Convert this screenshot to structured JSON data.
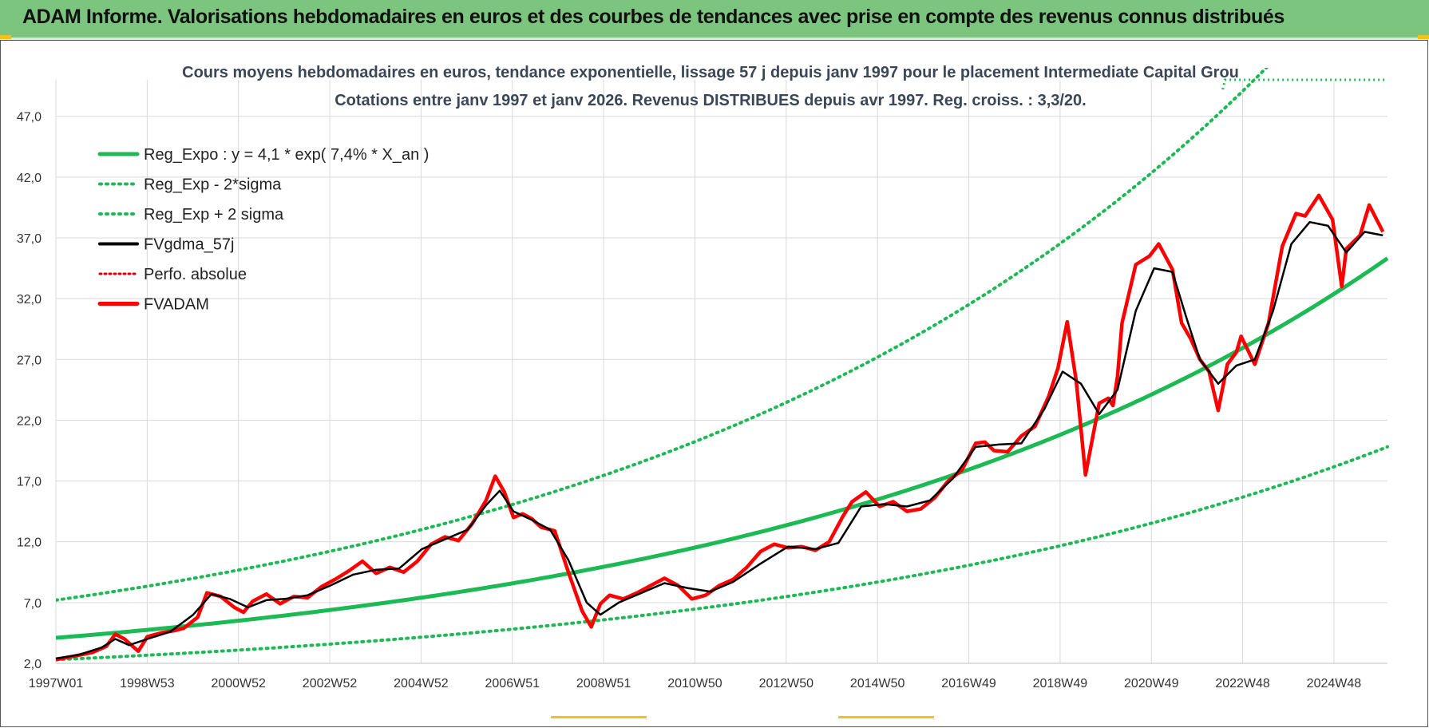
{
  "banner": {
    "title": "ADAM Informe. Valorisations hebdomadaires en euros et des courbes de tendances avec prise en compte des revenus connus distribués"
  },
  "colors": {
    "banner_bg": "#7bc57f",
    "trend": "#1db954",
    "smooth": "#000000",
    "price": "#ff0000",
    "perf": "#d40000"
  },
  "chart_data": {
    "type": "line",
    "title": "Cours moyens hebdomadaires en euros, tendance exponentielle, lissage 57 j depuis janv 1997  pour le placement Intermediate Capital Grou",
    "subtitle": "Cotations entre janv 1997 et janv 2026. Revenus DISTRIBUES depuis avr 1997. Reg. croiss. : 3,3/20.",
    "x_tick_labels": [
      "1997W01",
      "1998W53",
      "2000W52",
      "2002W52",
      "2004W52",
      "2006W51",
      "2008W51",
      "2010W50",
      "2012W50",
      "2014W50",
      "2016W49",
      "2018W49",
      "2020W49",
      "2022W48",
      "2024W48"
    ],
    "y_tick_labels": [
      "2,0",
      "7,0",
      "12,0",
      "17,0",
      "22,0",
      "27,0",
      "32,0",
      "37,0",
      "42,0",
      "47,0"
    ],
    "ylim": [
      2,
      50
    ],
    "xlim": [
      1997.0,
      2026.1
    ],
    "grid": true,
    "legend_position": "top-left",
    "legend": [
      "Reg_Expo : y = 4,1 * exp( 7,4% *  X_an )",
      "Reg_Exp - 2*sigma",
      "Reg_Exp + 2 sigma",
      "FVgdma_57j",
      "Perfo. absolue",
      "FVADAM"
    ],
    "trend_model": {
      "a": 4.1,
      "rate": 0.074,
      "lower_factor": 0.57,
      "upper_factor": 1.75,
      "lower_start": 2.3,
      "upper_start": 7.2
    },
    "perfo_absolue_level": 50.0,
    "series": [
      {
        "name": "FVADAM",
        "x": [
          1997.0,
          1997.4,
          1997.8,
          1998.1,
          1998.3,
          1998.5,
          1998.8,
          1999.0,
          1999.3,
          1999.6,
          1999.8,
          2000.1,
          2000.3,
          2000.6,
          2000.9,
          2001.1,
          2001.3,
          2001.6,
          2001.9,
          2002.2,
          2002.5,
          2002.8,
          2003.1,
          2003.4,
          2003.7,
          2004.0,
          2004.3,
          2004.6,
          2004.9,
          2005.2,
          2005.5,
          2005.8,
          2006.1,
          2006.4,
          2006.6,
          2006.8,
          2007.0,
          2007.2,
          2007.4,
          2007.6,
          2007.9,
          2008.2,
          2008.5,
          2008.7,
          2008.9,
          2009.1,
          2009.4,
          2009.7,
          2010.0,
          2010.3,
          2010.6,
          2010.9,
          2011.2,
          2011.5,
          2011.8,
          2012.1,
          2012.4,
          2012.7,
          2013.0,
          2013.3,
          2013.6,
          2013.9,
          2014.2,
          2014.4,
          2014.7,
          2015.0,
          2015.3,
          2015.6,
          2015.9,
          2016.2,
          2016.5,
          2016.8,
          2017.1,
          2017.3,
          2017.5,
          2017.8,
          2018.1,
          2018.4,
          2018.7,
          2018.9,
          2019.1,
          2019.3,
          2019.5,
          2019.8,
          2020.0,
          2020.1,
          2020.2,
          2020.3,
          2020.6,
          2020.9,
          2021.1,
          2021.4,
          2021.6,
          2021.8,
          2022.0,
          2022.2,
          2022.4,
          2022.6,
          2022.8,
          2022.9,
          2023.2,
          2023.5,
          2023.8,
          2024.1,
          2024.3,
          2024.6,
          2024.9,
          2025.1,
          2025.2,
          2025.5,
          2025.7,
          2026.0
        ],
        "values": [
          2.3,
          2.6,
          2.9,
          3.4,
          4.4,
          4.0,
          3.0,
          4.2,
          4.5,
          4.7,
          4.9,
          5.8,
          7.8,
          7.5,
          6.6,
          6.2,
          7.1,
          7.7,
          6.9,
          7.5,
          7.4,
          8.3,
          8.9,
          9.6,
          10.4,
          9.4,
          9.9,
          9.5,
          10.4,
          11.8,
          12.4,
          12.1,
          13.5,
          15.4,
          17.4,
          16.1,
          14.0,
          14.3,
          13.9,
          13.2,
          12.9,
          9.5,
          6.3,
          5.0,
          6.9,
          7.6,
          7.3,
          7.8,
          8.4,
          9.0,
          8.4,
          7.3,
          7.6,
          8.4,
          8.9,
          9.9,
          11.2,
          11.8,
          11.5,
          11.6,
          11.3,
          12.0,
          14.1,
          15.3,
          16.1,
          14.9,
          15.3,
          14.5,
          14.7,
          15.6,
          17.0,
          17.9,
          20.1,
          20.2,
          19.5,
          19.4,
          20.7,
          21.5,
          24.0,
          26.3,
          30.1,
          25.2,
          17.5,
          23.4,
          23.8,
          23.2,
          25.6,
          30.0,
          34.8,
          35.5,
          36.5,
          34.4,
          30.0,
          28.7,
          27.0,
          26.0,
          22.8,
          26.6,
          27.6,
          28.9,
          26.6,
          30.0,
          36.3,
          39.0,
          38.8,
          40.5,
          38.5,
          33.0,
          36.1,
          37.2,
          39.7,
          37.5
        ]
      },
      {
        "name": "FVgdma_57j",
        "x": [
          1997.0,
          1997.5,
          1998.0,
          1998.3,
          1998.6,
          1999.0,
          1999.5,
          2000.0,
          2000.4,
          2000.8,
          2001.2,
          2001.6,
          2002.0,
          2002.5,
          2003.0,
          2003.5,
          2004.0,
          2004.5,
          2005.0,
          2005.5,
          2006.0,
          2006.4,
          2006.7,
          2007.0,
          2007.4,
          2007.8,
          2008.2,
          2008.6,
          2008.9,
          2009.3,
          2009.8,
          2010.3,
          2010.8,
          2011.3,
          2011.8,
          2012.4,
          2013.0,
          2013.6,
          2014.1,
          2014.6,
          2015.1,
          2015.6,
          2016.1,
          2016.6,
          2017.1,
          2017.6,
          2018.1,
          2018.6,
          2019.0,
          2019.4,
          2019.8,
          2020.2,
          2020.6,
          2021.0,
          2021.4,
          2021.7,
          2022.0,
          2022.4,
          2022.8,
          2023.2,
          2023.6,
          2024.0,
          2024.4,
          2024.8,
          2025.2,
          2025.6,
          2026.0
        ],
        "values": [
          2.4,
          2.7,
          3.3,
          4.0,
          3.5,
          4.0,
          4.6,
          6.0,
          7.7,
          7.3,
          6.6,
          7.2,
          7.3,
          7.6,
          8.4,
          9.3,
          9.7,
          9.8,
          11.4,
          12.2,
          13.0,
          15.0,
          16.2,
          14.5,
          13.8,
          13.0,
          10.5,
          7.0,
          6.0,
          7.0,
          7.8,
          8.6,
          8.2,
          7.9,
          8.7,
          10.2,
          11.6,
          11.4,
          11.9,
          14.9,
          15.1,
          14.9,
          15.4,
          17.2,
          19.8,
          20.0,
          20.1,
          22.9,
          26.0,
          25.0,
          22.5,
          24.5,
          31.0,
          34.5,
          34.2,
          30.5,
          27.0,
          25.0,
          26.5,
          27.0,
          31.0,
          36.5,
          38.3,
          38.0,
          35.8,
          37.5,
          37.2
        ]
      }
    ]
  }
}
